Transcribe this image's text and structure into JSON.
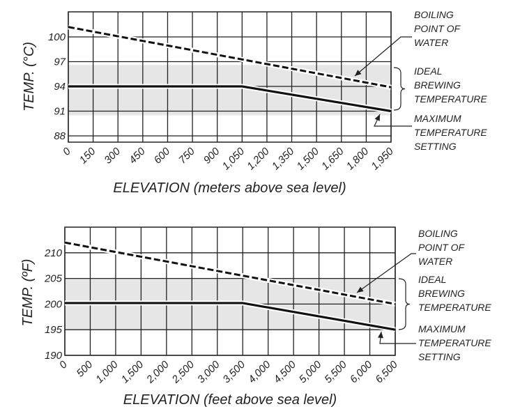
{
  "chart_data": [
    {
      "type": "line",
      "title": "",
      "xlabel": "ELEVATION (meters above sea level)",
      "ylabel": "TEMP. (°C)",
      "xlim": [
        0,
        1950
      ],
      "ylim": [
        87.24,
        103.04
      ],
      "x_ticks": [
        0,
        150,
        300,
        450,
        600,
        750,
        900,
        1050,
        1200,
        1350,
        1500,
        1650,
        1800,
        1950
      ],
      "x_tick_labels": [
        "0",
        "150",
        "300",
        "450",
        "600",
        "750",
        "900",
        "1,050",
        "1,200",
        "1,350",
        "1,500",
        "1,650",
        "1,800",
        "1,950"
      ],
      "y_ticks": [
        88,
        91,
        94,
        97,
        100
      ],
      "y_tick_labels": [
        "88",
        "91",
        "94",
        "97",
        "100"
      ],
      "grid": true,
      "band": {
        "name": "IDEAL BREWING TEMPERATURE",
        "from": 90.5,
        "to": 96.6
      },
      "series": [
        {
          "name": "BOILING POINT OF WATER",
          "style": "dashed",
          "x": [
            0,
            1950
          ],
          "y": [
            101.2,
            93.9
          ]
        },
        {
          "name": "MAXIMUM TEMPERATURE SETTING",
          "style": "solid",
          "x": [
            0,
            1050,
            1950
          ],
          "y": [
            94,
            94,
            91
          ]
        }
      ],
      "annotations": {
        "boiling": [
          "BOILING",
          "POINT OF",
          "WATER"
        ],
        "ideal": [
          "IDEAL",
          "BREWING",
          "TEMPERATURE"
        ],
        "maximum": [
          "MAXIMUM",
          "TEMPERATURE",
          "SETTING"
        ]
      }
    },
    {
      "type": "line",
      "title": "",
      "xlabel": "ELEVATION (feet above sea level)",
      "ylabel": "TEMP. (ºF)",
      "xlim": [
        0,
        6500
      ],
      "ylim": [
        190,
        215
      ],
      "x_ticks": [
        0,
        500,
        1000,
        1500,
        2000,
        2500,
        3000,
        3500,
        4000,
        4500,
        5000,
        5500,
        6000,
        6500
      ],
      "x_tick_labels": [
        "0",
        "500",
        "1,000",
        "1,500",
        "2,000",
        "2,500",
        "3,000",
        "3,500",
        "4,000",
        "4,500",
        "5,000",
        "5,500",
        "6,000",
        "6,500"
      ],
      "y_ticks": [
        190,
        195,
        200,
        205,
        210
      ],
      "y_tick_labels": [
        "190",
        "195",
        "200",
        "205",
        "210"
      ],
      "grid": true,
      "band": {
        "name": "IDEAL BREWING TEMPERATURE",
        "from": 195,
        "to": 205
      },
      "series": [
        {
          "name": "BOILING POINT OF WATER",
          "style": "dashed",
          "x": [
            0,
            6500
          ],
          "y": [
            212,
            200
          ]
        },
        {
          "name": "MAXIMUM TEMPERATURE SETTING",
          "style": "solid",
          "x": [
            0,
            3500,
            6500
          ],
          "y": [
            200.2,
            200.2,
            195
          ]
        }
      ],
      "annotations": {
        "boiling": [
          "BOILING",
          "POINT OF",
          "WATER"
        ],
        "ideal": [
          "IDEAL",
          "BREWING",
          "TEMPERATURE"
        ],
        "maximum": [
          "MAXIMUM",
          "TEMPERATURE",
          "SETTING"
        ]
      }
    }
  ],
  "colors": {
    "band": "#e6e6e6",
    "grid": "#222222",
    "line": "#111111"
  }
}
